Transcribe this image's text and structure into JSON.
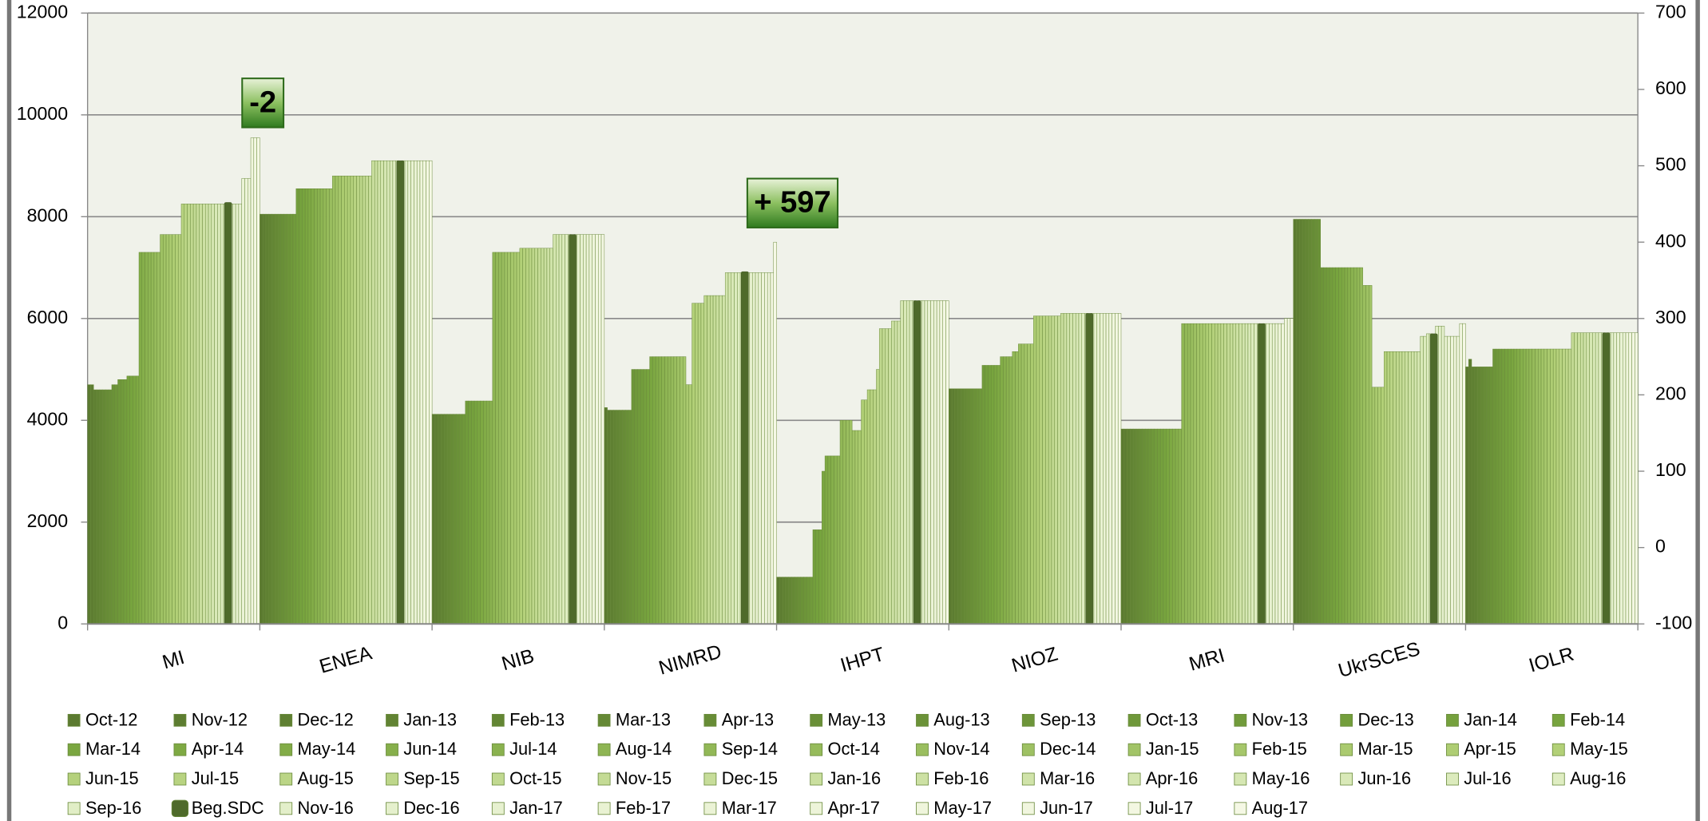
{
  "chart_data": {
    "type": "bar",
    "categories": [
      "MI",
      "ENEA",
      "NIB",
      "NIMRD",
      "IHPT",
      "NIOZ",
      "MRI",
      "UkrSCES",
      "IOLR"
    ],
    "ylim": [
      0,
      12000
    ],
    "yticks": [
      0,
      2000,
      4000,
      6000,
      8000,
      10000,
      12000
    ],
    "y2lim": [
      -100,
      700
    ],
    "y2ticks": [
      -100,
      0,
      100,
      200,
      300,
      400,
      500,
      600,
      700
    ],
    "grid": true,
    "annotations": [
      {
        "text": "-2",
        "category": 0
      },
      {
        "text": "+ 597",
        "category": 3
      }
    ],
    "series": [
      {
        "name": "Oct-12",
        "color": "#5b7a30",
        "values": [
          4700,
          8050,
          4120,
          4250,
          920,
          4620,
          3830,
          7950,
          5050
        ]
      },
      {
        "name": "Nov-12",
        "color": "#5d7d31",
        "values": [
          4700,
          8050,
          4120,
          4200,
          920,
          4620,
          3830,
          7950,
          5200
        ]
      },
      {
        "name": "Dec-12",
        "color": "#5f8032",
        "values": [
          4600,
          8050,
          4120,
          4200,
          920,
          4620,
          3830,
          7950,
          5050
        ]
      },
      {
        "name": "Jan-13",
        "color": "#618333",
        "values": [
          4600,
          8050,
          4120,
          4200,
          920,
          4620,
          3830,
          7950,
          5050
        ]
      },
      {
        "name": "Feb-13",
        "color": "#638634",
        "values": [
          4600,
          8050,
          4120,
          4200,
          920,
          4620,
          3830,
          7950,
          5050
        ]
      },
      {
        "name": "Mar-13",
        "color": "#658935",
        "values": [
          4600,
          8050,
          4120,
          4200,
          920,
          4620,
          3830,
          7950,
          5050
        ]
      },
      {
        "name": "Apr-13",
        "color": "#678c36",
        "values": [
          4600,
          8050,
          4120,
          4200,
          920,
          4620,
          3830,
          7950,
          5050
        ]
      },
      {
        "name": "May-13",
        "color": "#698f37",
        "values": [
          4600,
          8050,
          4120,
          4200,
          920,
          4620,
          3830,
          7950,
          5050
        ]
      },
      {
        "name": "Aug-13",
        "color": "#6b9238",
        "values": [
          4700,
          8050,
          4120,
          4200,
          920,
          4620,
          3830,
          7950,
          5050
        ]
      },
      {
        "name": "Sep-13",
        "color": "#6d9539",
        "values": [
          4700,
          8050,
          4120,
          5000,
          920,
          4620,
          3830,
          7000,
          5400
        ]
      },
      {
        "name": "Oct-13",
        "color": "#6f983a",
        "values": [
          4800,
          8050,
          4120,
          5000,
          920,
          4620,
          3830,
          7000,
          5400
        ]
      },
      {
        "name": "Nov-13",
        "color": "#719b3b",
        "values": [
          4800,
          8050,
          4380,
          5000,
          920,
          5080,
          3830,
          7000,
          5400
        ]
      },
      {
        "name": "Dec-13",
        "color": "#739e3c",
        "values": [
          4800,
          8550,
          4380,
          5000,
          1850,
          5080,
          3830,
          7000,
          5400
        ]
      },
      {
        "name": "Jan-14",
        "color": "#75a13d",
        "values": [
          4870,
          8550,
          4380,
          5000,
          1850,
          5080,
          3830,
          7000,
          5400
        ]
      },
      {
        "name": "Feb-14",
        "color": "#77a43e",
        "values": [
          4870,
          8550,
          4380,
          5000,
          1850,
          5080,
          3830,
          7000,
          5400
        ]
      },
      {
        "name": "Mar-14",
        "color": "#7aa640",
        "values": [
          4870,
          8550,
          4380,
          5250,
          3000,
          5080,
          3830,
          7000,
          5400
        ]
      },
      {
        "name": "Apr-14",
        "color": "#7ea943",
        "values": [
          4870,
          8550,
          4380,
          5250,
          3300,
          5080,
          3830,
          7000,
          5400
        ]
      },
      {
        "name": "May-14",
        "color": "#82ac47",
        "values": [
          7300,
          8550,
          4380,
          5250,
          3300,
          5250,
          3830,
          7000,
          5400
        ]
      },
      {
        "name": "Jun-14",
        "color": "#86af4b",
        "values": [
          7300,
          8550,
          4380,
          5250,
          3300,
          5250,
          3830,
          7000,
          5400
        ]
      },
      {
        "name": "Jul-14",
        "color": "#8ab24f",
        "values": [
          7300,
          8550,
          4380,
          5250,
          3300,
          5250,
          3830,
          7000,
          5400
        ]
      },
      {
        "name": "Aug-14",
        "color": "#8eb553",
        "values": [
          7300,
          8550,
          7300,
          5250,
          3300,
          5250,
          5900,
          7000,
          5400
        ]
      },
      {
        "name": "Sep-14",
        "color": "#92b857",
        "values": [
          7300,
          8550,
          7300,
          5250,
          4000,
          5350,
          5900,
          7000,
          5400
        ]
      },
      {
        "name": "Oct-14",
        "color": "#96bb5b",
        "values": [
          7300,
          8550,
          7300,
          5250,
          4000,
          5350,
          5900,
          7000,
          5400
        ]
      },
      {
        "name": "Nov-14",
        "color": "#9abe5f",
        "values": [
          7300,
          8550,
          7300,
          5250,
          4000,
          5500,
          5900,
          6650,
          5400
        ]
      },
      {
        "name": "Dec-14",
        "color": "#9ec163",
        "values": [
          7650,
          8800,
          7300,
          5250,
          4000,
          5500,
          5900,
          6650,
          5400
        ]
      },
      {
        "name": "Jan-15",
        "color": "#a2c467",
        "values": [
          7650,
          8800,
          7300,
          5250,
          3800,
          5500,
          5900,
          6650,
          5400
        ]
      },
      {
        "name": "Feb-15",
        "color": "#a6c76b",
        "values": [
          7650,
          8800,
          7300,
          5250,
          3800,
          5500,
          5900,
          4650,
          5400
        ]
      },
      {
        "name": "Mar-15",
        "color": "#aaca6f",
        "values": [
          7650,
          8800,
          7300,
          4700,
          3800,
          5500,
          5900,
          4650,
          5400
        ]
      },
      {
        "name": "Apr-15",
        "color": "#aecd73",
        "values": [
          7650,
          8800,
          7300,
          4700,
          4400,
          6050,
          5900,
          4650,
          5400
        ]
      },
      {
        "name": "May-15",
        "color": "#b2d077",
        "values": [
          7650,
          8800,
          7380,
          6300,
          4400,
          6050,
          5900,
          4650,
          5400
        ]
      },
      {
        "name": "Jun-15",
        "color": "#b5d17c",
        "values": [
          7650,
          8800,
          7380,
          6300,
          4600,
          6050,
          5900,
          5350,
          5400
        ]
      },
      {
        "name": "Jul-15",
        "color": "#b8d381",
        "values": [
          8250,
          8800,
          7380,
          6300,
          4600,
          6050,
          5900,
          5350,
          5400
        ]
      },
      {
        "name": "Aug-15",
        "color": "#bbd586",
        "values": [
          8250,
          8800,
          7380,
          6300,
          4600,
          6050,
          5900,
          5350,
          5400
        ]
      },
      {
        "name": "Sep-15",
        "color": "#bed78b",
        "values": [
          8250,
          8800,
          7380,
          6450,
          5000,
          6050,
          5900,
          5350,
          5400
        ]
      },
      {
        "name": "Oct-15",
        "color": "#c1d990",
        "values": [
          8250,
          8800,
          7380,
          6450,
          5800,
          6050,
          5900,
          5350,
          5400
        ]
      },
      {
        "name": "Nov-15",
        "color": "#c4db95",
        "values": [
          8250,
          8800,
          7380,
          6450,
          5800,
          6050,
          5900,
          5350,
          5720
        ]
      },
      {
        "name": "Dec-15",
        "color": "#c7dd9a",
        "values": [
          8250,
          8800,
          7380,
          6450,
          5800,
          6050,
          5900,
          5350,
          5720
        ]
      },
      {
        "name": "Jan-16",
        "color": "#cadf9f",
        "values": [
          8250,
          9100,
          7380,
          6450,
          5800,
          6100,
          5900,
          5350,
          5720
        ]
      },
      {
        "name": "Feb-16",
        "color": "#cde1a4",
        "values": [
          8250,
          9100,
          7380,
          6450,
          5950,
          6100,
          5900,
          5350,
          5720
        ]
      },
      {
        "name": "Mar-16",
        "color": "#d0e3a9",
        "values": [
          8250,
          9100,
          7380,
          6450,
          5950,
          6100,
          5900,
          5350,
          5720
        ]
      },
      {
        "name": "Apr-16",
        "color": "#d3e5ae",
        "values": [
          8250,
          9100,
          7650,
          6900,
          5950,
          6100,
          5900,
          5350,
          5720
        ]
      },
      {
        "name": "May-16",
        "color": "#d6e7b3",
        "values": [
          8250,
          9100,
          7650,
          6900,
          6350,
          6100,
          5900,
          5350,
          5720
        ]
      },
      {
        "name": "Jun-16",
        "color": "#d9e9b8",
        "values": [
          8250,
          9100,
          7650,
          6900,
          6350,
          6100,
          5900,
          5650,
          5720
        ]
      },
      {
        "name": "Jul-16",
        "color": "#dcebbd",
        "values": [
          8250,
          9100,
          7650,
          6900,
          6350,
          6100,
          5900,
          5650,
          5720
        ]
      },
      {
        "name": "Aug-16",
        "color": "#dfedc2",
        "values": [
          8250,
          9100,
          7650,
          6900,
          6350,
          6100,
          5900,
          5700,
          5720
        ]
      },
      {
        "name": "Sep-16",
        "color": "#e1eec6",
        "values": [
          8250,
          9100,
          7650,
          6900,
          6350,
          6100,
          5900,
          5700,
          5720
        ]
      },
      {
        "name": "Beg.SDC",
        "color": "#4e6a2a",
        "values": [
          8280,
          9100,
          7650,
          6920,
          6350,
          6100,
          5900,
          5700,
          5720
        ]
      },
      {
        "name": "Nov-16",
        "color": "#e3efca",
        "values": [
          8250,
          9100,
          7650,
          6900,
          6350,
          6100,
          5900,
          5850,
          5720
        ]
      },
      {
        "name": "Dec-16",
        "color": "#e5f0cd",
        "values": [
          8250,
          9100,
          7650,
          6900,
          6350,
          6100,
          5900,
          5850,
          5720
        ]
      },
      {
        "name": "Jan-17",
        "color": "#e7f1d0",
        "values": [
          8250,
          9100,
          7650,
          6900,
          6350,
          6100,
          5900,
          5850,
          5720
        ]
      },
      {
        "name": "Feb-17",
        "color": "#e9f2d3",
        "values": [
          8250,
          9100,
          7650,
          6900,
          6350,
          6100,
          5900,
          5650,
          5720
        ]
      },
      {
        "name": "Mar-17",
        "color": "#ebf3d6",
        "values": [
          8750,
          9100,
          7650,
          6900,
          6350,
          6100,
          5900,
          5650,
          5720
        ]
      },
      {
        "name": "Apr-17",
        "color": "#edf4d9",
        "values": [
          8750,
          9100,
          7650,
          6900,
          6350,
          6100,
          5900,
          5650,
          5720
        ]
      },
      {
        "name": "May-17",
        "color": "#eff5dc",
        "values": [
          8750,
          9100,
          7650,
          6900,
          6350,
          6100,
          5900,
          5650,
          5720
        ]
      },
      {
        "name": "Jun-17",
        "color": "#f1f6df",
        "values": [
          9550,
          9100,
          7650,
          6900,
          6350,
          6100,
          6000,
          5650,
          5720
        ]
      },
      {
        "name": "Jul-17",
        "color": "#f3f7e2",
        "values": [
          9550,
          9100,
          7650,
          6900,
          6350,
          6100,
          6000,
          5900,
          5720
        ]
      },
      {
        "name": "Aug-17",
        "color": "#f5f8e5",
        "values": [
          9550,
          9100,
          7650,
          7500,
          6350,
          6100,
          6000,
          5900,
          5720
        ]
      }
    ]
  }
}
